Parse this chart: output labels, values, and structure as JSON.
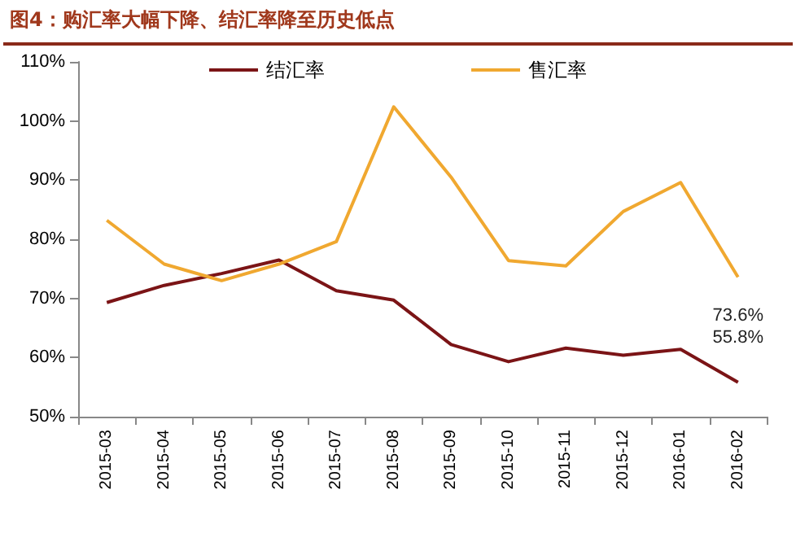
{
  "chart_data": {
    "type": "line",
    "title": "图4：购汇率大幅下降、结汇率降至历史低点",
    "categories": [
      "2015-03",
      "2015-04",
      "2015-05",
      "2015-06",
      "2015-07",
      "2015-08",
      "2015-09",
      "2015-10",
      "2015-11",
      "2015-12",
      "2016-01",
      "2016-02"
    ],
    "series": [
      {
        "name": "结汇率",
        "color": "#7b1416",
        "values": [
          69.3,
          72.2,
          74.2,
          76.5,
          71.3,
          69.7,
          62.2,
          59.3,
          61.6,
          60.4,
          61.4,
          55.8
        ],
        "value_labels": [
          null,
          null,
          null,
          null,
          null,
          null,
          null,
          null,
          null,
          null,
          null,
          "55.8%"
        ]
      },
      {
        "name": "售汇率",
        "color": "#f0a830",
        "values": [
          83.2,
          75.8,
          73.0,
          75.8,
          79.6,
          102.4,
          90.5,
          76.4,
          75.5,
          84.7,
          89.6,
          73.6
        ],
        "value_labels": [
          null,
          null,
          null,
          null,
          null,
          null,
          null,
          null,
          null,
          null,
          null,
          "73.6%"
        ]
      }
    ],
    "ylim": [
      50,
      110
    ],
    "yticks": [
      {
        "value": 50,
        "label": "50%"
      },
      {
        "value": 60,
        "label": "60%"
      },
      {
        "value": 70,
        "label": "70%"
      },
      {
        "value": 80,
        "label": "80%"
      },
      {
        "value": 90,
        "label": "90%"
      },
      {
        "value": 100,
        "label": "100%"
      },
      {
        "value": 110,
        "label": "110%"
      }
    ],
    "legend": "top",
    "grid": false,
    "marker": "none",
    "line_style": "solid"
  }
}
